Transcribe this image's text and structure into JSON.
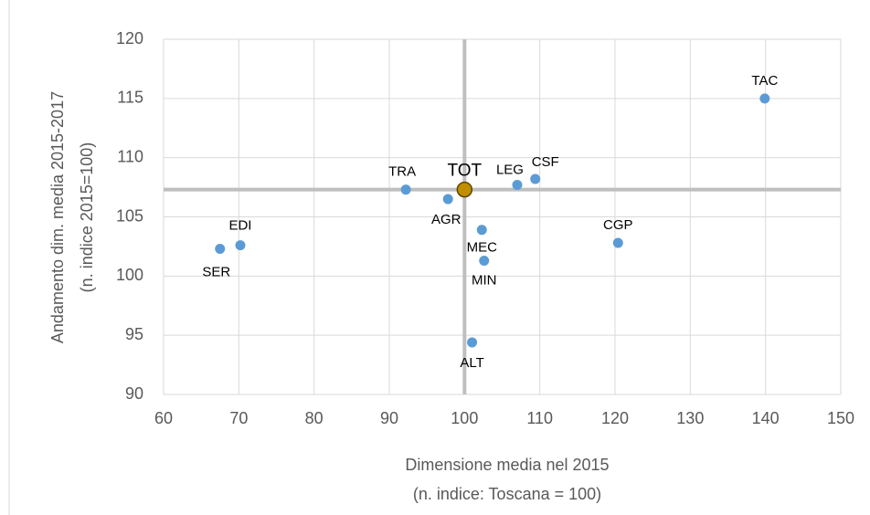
{
  "chart_data": {
    "type": "scatter",
    "x_label": [
      "Dimensione media nel 2015",
      "(n. indice: Toscana = 100)"
    ],
    "y_label": [
      "Andamento dim. media 2015-2017",
      "(n. indice 2015=100)"
    ],
    "xlim": [
      60,
      150
    ],
    "xticks": [
      60,
      70,
      80,
      90,
      100,
      110,
      120,
      130,
      140,
      150
    ],
    "ylim": [
      90,
      120
    ],
    "yticks": [
      90,
      95,
      100,
      105,
      110,
      115,
      120
    ],
    "grid": true,
    "reference_lines": {
      "x": 100,
      "y": 107.3,
      "color": "#bfbfbf"
    },
    "series": [
      {
        "color": "#5b9bd5",
        "labels": [
          "TAC",
          "TRA",
          "AGR",
          "LEG",
          "CSF",
          "MEC",
          "MIN",
          "ALT",
          "CGP",
          "EDI",
          "SER"
        ],
        "x": [
          139.9,
          92.2,
          97.8,
          107,
          109.4,
          102.3,
          102.6,
          101,
          120.4,
          70.2,
          67.5
        ],
        "y": [
          115,
          107.3,
          106.5,
          107.7,
          108.2,
          103.9,
          101.3,
          94.4,
          102.8,
          102.6,
          102.3
        ]
      },
      {
        "color": "#bf8f00",
        "labels": [
          "TOT"
        ],
        "x": [
          100
        ],
        "y": [
          107.3
        ]
      }
    ]
  }
}
